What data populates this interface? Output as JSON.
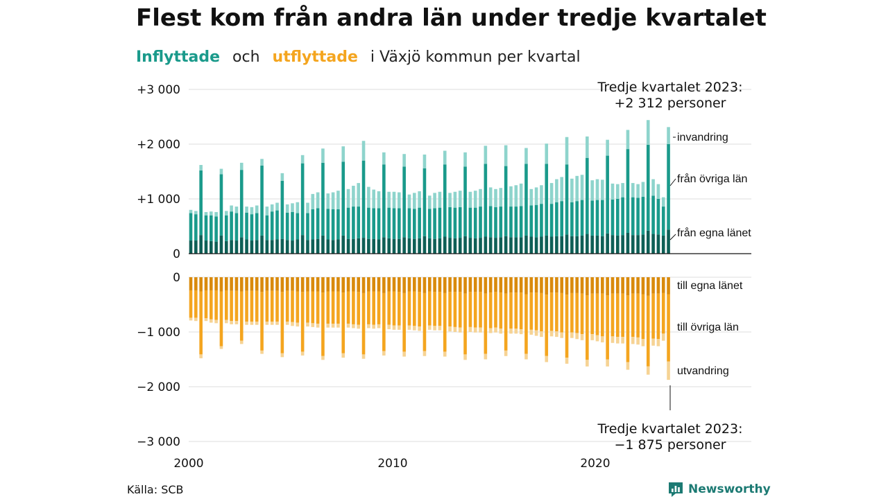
{
  "title": "Flest kom från andra län under tredje kvartalet",
  "subtitle": {
    "in_label": "Inflyttade",
    "connector": "och",
    "out_label": "utflyttade",
    "rest": "i Växjö kommun per kvartal"
  },
  "source": "Källa: SCB",
  "brand": "Newsworthy",
  "colors": {
    "in_own": "#0e5f56",
    "in_other": "#1a9a8b",
    "in_immig": "#8ed4cc",
    "out_own": "#d98a0c",
    "out_other": "#f4a51f",
    "out_emig": "#f6d394",
    "grid": "#dddddd",
    "text": "#111111",
    "brand": "#1c7a73"
  },
  "chart_data": {
    "type": "bar",
    "stacked": true,
    "x_ticks": [
      "2000",
      "2010",
      "2020"
    ],
    "y_ticks_top": [
      "+3 000",
      "+2 000",
      "+1 000",
      "0"
    ],
    "y_ticks_bottom": [
      "0",
      "−1 000",
      "−2 000",
      "−3 000"
    ],
    "ylim_top": [
      0,
      3000
    ],
    "ylim_bottom": [
      -3000,
      0
    ],
    "grid": true,
    "series_labels_in": [
      "invandring",
      "från övriga län",
      "från egna länet"
    ],
    "series_labels_out": [
      "till egna länet",
      "till övriga län",
      "utvandring"
    ],
    "annotation_top": {
      "line1": "Tredje kvartalet 2023:",
      "line2": "+2 312 personer"
    },
    "annotation_bottom": {
      "line1": "Tredje kvartalet 2023:",
      "line2": "−1 875 personer"
    },
    "x": [
      2000.0,
      2000.25,
      2000.5,
      2000.75,
      2001.0,
      2001.25,
      2001.5,
      2001.75,
      2002.0,
      2002.25,
      2002.5,
      2002.75,
      2003.0,
      2003.25,
      2003.5,
      2003.75,
      2004.0,
      2004.25,
      2004.5,
      2004.75,
      2005.0,
      2005.25,
      2005.5,
      2005.75,
      2006.0,
      2006.25,
      2006.5,
      2006.75,
      2007.0,
      2007.25,
      2007.5,
      2007.75,
      2008.0,
      2008.25,
      2008.5,
      2008.75,
      2009.0,
      2009.25,
      2009.5,
      2009.75,
      2010.0,
      2010.25,
      2010.5,
      2010.75,
      2011.0,
      2011.25,
      2011.5,
      2011.75,
      2012.0,
      2012.25,
      2012.5,
      2012.75,
      2013.0,
      2013.25,
      2013.5,
      2013.75,
      2014.0,
      2014.25,
      2014.5,
      2014.75,
      2015.0,
      2015.25,
      2015.5,
      2015.75,
      2016.0,
      2016.25,
      2016.5,
      2016.75,
      2017.0,
      2017.25,
      2017.5,
      2017.75,
      2018.0,
      2018.25,
      2018.5,
      2018.75,
      2019.0,
      2019.25,
      2019.5,
      2019.75,
      2020.0,
      2020.25,
      2020.5,
      2020.75,
      2021.0,
      2021.25,
      2021.5,
      2021.75,
      2022.0,
      2022.25,
      2022.5,
      2022.75,
      2023.0,
      2023.25,
      2023.5
    ],
    "in_series": [
      {
        "name": "från egna länet",
        "values": [
          240,
          240,
          340,
          240,
          230,
          220,
          330,
          230,
          250,
          240,
          300,
          260,
          240,
          250,
          330,
          250,
          250,
          260,
          270,
          250,
          240,
          260,
          340,
          250,
          260,
          270,
          330,
          260,
          250,
          260,
          330,
          270,
          270,
          280,
          290,
          270,
          270,
          260,
          300,
          280,
          270,
          270,
          300,
          280,
          270,
          280,
          320,
          280,
          270,
          280,
          310,
          290,
          280,
          290,
          320,
          290,
          280,
          290,
          310,
          300,
          290,
          300,
          320,
          300,
          300,
          300,
          330,
          310,
          300,
          310,
          330,
          310,
          320,
          320,
          350,
          320,
          320,
          330,
          360,
          330,
          330,
          320,
          370,
          340,
          330,
          340,
          380,
          340,
          340,
          350,
          420,
          360,
          350,
          330,
          440
        ]
      },
      {
        "name": "från övriga län",
        "values": [
          500,
          480,
          1180,
          460,
          470,
          460,
          1120,
          470,
          520,
          500,
          1230,
          490,
          480,
          490,
          1280,
          450,
          520,
          530,
          1060,
          500,
          520,
          480,
          1310,
          490,
          550,
          560,
          1330,
          560,
          560,
          550,
          1350,
          570,
          590,
          580,
          1410,
          570,
          560,
          570,
          1330,
          560,
          560,
          560,
          1290,
          550,
          550,
          560,
          1240,
          540,
          560,
          560,
          1320,
          560,
          560,
          560,
          1270,
          550,
          560,
          570,
          1330,
          570,
          560,
          560,
          1280,
          560,
          560,
          570,
          1310,
          570,
          590,
          600,
          1310,
          600,
          620,
          640,
          1280,
          620,
          640,
          650,
          1390,
          640,
          650,
          660,
          1420,
          650,
          670,
          690,
          1530,
          690,
          680,
          690,
          1570,
          700,
          650,
          530,
          1560
        ]
      },
      {
        "name": "invandring",
        "values": [
          60,
          60,
          100,
          60,
          70,
          80,
          100,
          80,
          110,
          120,
          130,
          110,
          130,
          140,
          120,
          160,
          130,
          140,
          140,
          150,
          160,
          200,
          150,
          190,
          280,
          290,
          260,
          280,
          310,
          340,
          280,
          340,
          380,
          430,
          360,
          380,
          340,
          310,
          220,
          290,
          300,
          290,
          230,
          250,
          290,
          300,
          250,
          240,
          280,
          290,
          250,
          260,
          290,
          300,
          260,
          290,
          310,
          320,
          330,
          340,
          330,
          340,
          380,
          370,
          390,
          410,
          290,
          300,
          320,
          340,
          370,
          380,
          420,
          440,
          500,
          430,
          460,
          460,
          390,
          370,
          380,
          370,
          290,
          290,
          270,
          260,
          350,
          260,
          250,
          270,
          450,
          300,
          270,
          170,
          312
        ]
      }
    ],
    "out_series": [
      {
        "name": "till egna länet",
        "values": [
          -240,
          -240,
          -260,
          -240,
          -240,
          -240,
          -260,
          -240,
          -250,
          -250,
          -260,
          -250,
          -250,
          -250,
          -270,
          -250,
          -250,
          -250,
          -270,
          -250,
          -250,
          -260,
          -270,
          -260,
          -260,
          -260,
          -280,
          -260,
          -260,
          -260,
          -280,
          -260,
          -260,
          -270,
          -290,
          -260,
          -260,
          -260,
          -290,
          -260,
          -260,
          -270,
          -290,
          -260,
          -260,
          -270,
          -290,
          -260,
          -270,
          -270,
          -290,
          -270,
          -270,
          -270,
          -300,
          -270,
          -270,
          -270,
          -300,
          -280,
          -270,
          -280,
          -300,
          -280,
          -280,
          -280,
          -310,
          -280,
          -280,
          -290,
          -320,
          -280,
          -280,
          -290,
          -320,
          -290,
          -290,
          -300,
          -330,
          -300,
          -300,
          -300,
          -330,
          -300,
          -300,
          -300,
          -330,
          -300,
          -300,
          -310,
          -340,
          -300,
          -300,
          -290,
          -310
        ]
      },
      {
        "name": "till övriga län",
        "values": [
          -500,
          -500,
          -1150,
          -510,
          -530,
          -540,
          -1000,
          -540,
          -550,
          -550,
          -900,
          -560,
          -560,
          -560,
          -1070,
          -560,
          -560,
          -560,
          -1120,
          -560,
          -570,
          -570,
          -1090,
          -570,
          -580,
          -590,
          -1160,
          -590,
          -590,
          -590,
          -1110,
          -590,
          -600,
          -600,
          -1120,
          -600,
          -610,
          -600,
          -1060,
          -610,
          -620,
          -610,
          -1070,
          -620,
          -630,
          -630,
          -1060,
          -620,
          -620,
          -620,
          -1070,
          -630,
          -640,
          -650,
          -1110,
          -640,
          -650,
          -650,
          -1100,
          -650,
          -650,
          -660,
          -1040,
          -660,
          -660,
          -670,
          -1090,
          -680,
          -690,
          -700,
          -1120,
          -700,
          -710,
          -720,
          -1150,
          -720,
          -730,
          -740,
          -1180,
          -740,
          -760,
          -780,
          -1170,
          -780,
          -790,
          -790,
          -1220,
          -790,
          -800,
          -820,
          -1290,
          -820,
          -830,
          -740,
          -1230
        ]
      },
      {
        "name": "utvandring",
        "values": [
          -50,
          -60,
          -70,
          -50,
          -60,
          -60,
          -50,
          -60,
          -60,
          -60,
          -60,
          -60,
          -60,
          -60,
          -60,
          -60,
          -60,
          -60,
          -70,
          -60,
          -70,
          -70,
          -70,
          -70,
          -70,
          -70,
          -70,
          -70,
          -70,
          -70,
          -80,
          -70,
          -70,
          -70,
          -80,
          -70,
          -70,
          -70,
          -80,
          -80,
          -80,
          -80,
          -90,
          -80,
          -80,
          -80,
          -90,
          -80,
          -80,
          -80,
          -90,
          -90,
          -90,
          -90,
          -100,
          -90,
          -90,
          -90,
          -100,
          -90,
          -90,
          -90,
          -100,
          -90,
          -90,
          -90,
          -100,
          -90,
          -100,
          -100,
          -110,
          -100,
          -100,
          -100,
          -110,
          -100,
          -110,
          -110,
          -120,
          -110,
          -110,
          -110,
          -130,
          -120,
          -120,
          -120,
          -140,
          -130,
          -130,
          -130,
          -150,
          -130,
          -130,
          -130,
          -335
        ]
      }
    ]
  }
}
